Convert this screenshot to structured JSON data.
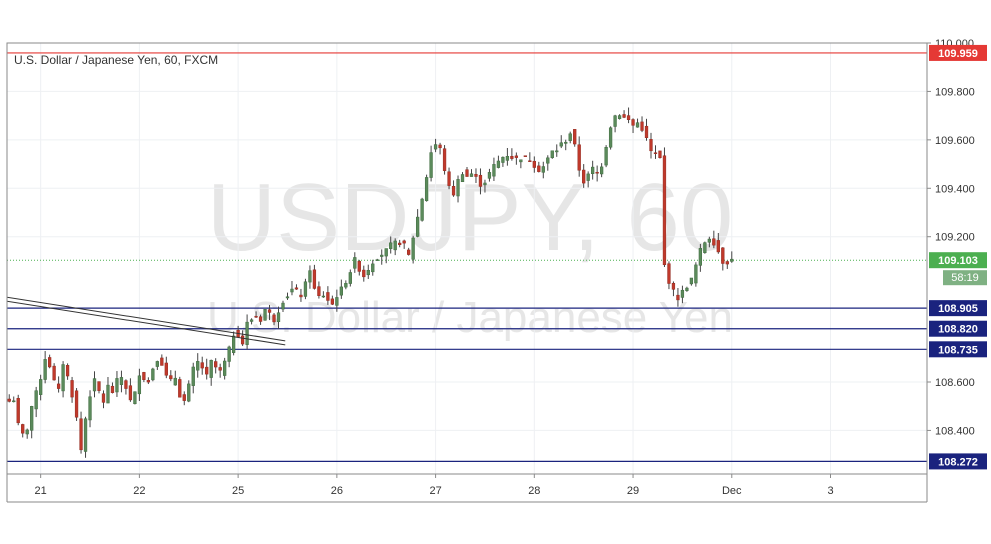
{
  "chart_data": {
    "type": "candlestick",
    "title": "U.S. Dollar / Japanese Yen, 60, FXCM",
    "watermark": {
      "symbol": "USDJPY, 60",
      "name": "U.S. Dollar / Japanese Yen"
    },
    "ylim": [
      108.22,
      110.0
    ],
    "y_ticks": [
      "110.000",
      "109.800",
      "109.600",
      "109.400",
      "109.200",
      "108.600",
      "108.400"
    ],
    "y_tick_values": [
      110.0,
      109.8,
      109.6,
      109.4,
      109.2,
      108.6,
      108.4
    ],
    "x_ticks": [
      "21",
      "22",
      "25",
      "26",
      "27",
      "28",
      "29",
      "Dec",
      "3"
    ],
    "x_tick_positions": [
      7,
      29,
      51,
      73,
      95,
      117,
      139,
      161,
      183
    ],
    "bars_total": 205,
    "horizontal_levels": [
      {
        "label": "109.959",
        "value": 109.959,
        "color": "#e53935"
      },
      {
        "label": "108.905",
        "value": 108.905,
        "color": "#1a237e"
      },
      {
        "label": "108.820",
        "value": 108.82,
        "color": "#1a237e"
      },
      {
        "label": "108.735",
        "value": 108.735,
        "color": "#1a237e"
      },
      {
        "label": "108.272",
        "value": 108.272,
        "color": "#1a237e"
      }
    ],
    "last_price": {
      "label": "109.103",
      "value": 109.103,
      "countdown": "58:19",
      "color": "#4caf50"
    },
    "trendline": {
      "start": [
        0,
        108.95
      ],
      "end": [
        61.5,
        108.77
      ]
    },
    "candle_colors": {
      "up": "#5b8a5b",
      "down": "#c0392b",
      "wick": "#444444"
    },
    "anchors": [
      [
        0,
        108.52
      ],
      [
        1,
        108.53
      ],
      [
        2,
        108.42
      ],
      [
        3,
        108.38
      ],
      [
        4,
        108.41
      ],
      [
        5,
        108.5
      ],
      [
        6,
        108.55
      ],
      [
        7,
        108.62
      ],
      [
        8,
        108.7
      ],
      [
        9,
        108.67
      ],
      [
        10,
        108.6
      ],
      [
        11,
        108.56
      ],
      [
        12,
        108.68
      ],
      [
        13,
        108.62
      ],
      [
        14,
        108.55
      ],
      [
        15,
        108.45
      ],
      [
        16,
        108.32
      ],
      [
        17,
        108.45
      ],
      [
        18,
        108.55
      ],
      [
        19,
        108.6
      ],
      [
        20,
        108.56
      ],
      [
        21,
        108.52
      ],
      [
        22,
        108.58
      ],
      [
        23,
        108.56
      ],
      [
        24,
        108.6
      ],
      [
        25,
        108.62
      ],
      [
        26,
        108.58
      ],
      [
        27,
        108.52
      ],
      [
        28,
        108.55
      ],
      [
        29,
        108.64
      ],
      [
        30,
        108.62
      ],
      [
        31,
        108.6
      ],
      [
        32,
        108.66
      ],
      [
        33,
        108.7
      ],
      [
        34,
        108.68
      ],
      [
        35,
        108.62
      ],
      [
        36,
        108.6
      ],
      [
        37,
        108.62
      ],
      [
        38,
        108.55
      ],
      [
        39,
        108.52
      ],
      [
        40,
        108.58
      ],
      [
        41,
        108.65
      ],
      [
        42,
        108.68
      ],
      [
        43,
        108.66
      ],
      [
        44,
        108.62
      ],
      [
        45,
        108.68
      ],
      [
        46,
        108.66
      ],
      [
        47,
        108.64
      ],
      [
        48,
        108.68
      ],
      [
        49,
        108.73
      ],
      [
        50,
        108.8
      ],
      [
        51,
        108.8
      ],
      [
        52,
        108.76
      ],
      [
        53,
        108.84
      ],
      [
        54,
        108.86
      ],
      [
        55,
        108.87
      ],
      [
        56,
        108.86
      ],
      [
        57,
        108.9
      ],
      [
        58,
        108.88
      ],
      [
        59,
        108.86
      ],
      [
        60,
        108.9
      ],
      [
        61,
        108.94
      ],
      [
        62,
        108.96
      ],
      [
        63,
        108.98
      ],
      [
        64,
        108.97
      ],
      [
        65,
        108.96
      ],
      [
        66,
        109.0
      ],
      [
        67,
        109.07
      ],
      [
        68,
        108.98
      ],
      [
        69,
        108.95
      ],
      [
        70,
        108.96
      ],
      [
        71,
        108.94
      ],
      [
        72,
        108.92
      ],
      [
        73,
        108.96
      ],
      [
        74,
        108.98
      ],
      [
        75,
        109.02
      ],
      [
        76,
        109.06
      ],
      [
        77,
        109.1
      ],
      [
        78,
        109.07
      ],
      [
        79,
        109.04
      ],
      [
        80,
        109.07
      ],
      [
        81,
        109.1
      ],
      [
        82,
        109.12
      ],
      [
        83,
        109.13
      ],
      [
        84,
        109.14
      ],
      [
        85,
        109.16
      ],
      [
        86,
        109.17
      ],
      [
        87,
        109.18
      ],
      [
        88,
        109.16
      ],
      [
        89,
        109.12
      ],
      [
        90,
        109.2
      ],
      [
        91,
        109.28
      ],
      [
        92,
        109.36
      ],
      [
        93,
        109.45
      ],
      [
        94,
        109.55
      ],
      [
        95,
        109.58
      ],
      [
        96,
        109.56
      ],
      [
        97,
        109.48
      ],
      [
        98,
        109.4
      ],
      [
        99,
        109.38
      ],
      [
        100,
        109.43
      ],
      [
        101,
        109.47
      ],
      [
        102,
        109.45
      ],
      [
        103,
        109.46
      ],
      [
        104,
        109.44
      ],
      [
        105,
        109.42
      ],
      [
        106,
        109.43
      ],
      [
        107,
        109.46
      ],
      [
        108,
        109.49
      ],
      [
        109,
        109.51
      ],
      [
        110,
        109.53
      ],
      [
        111,
        109.54
      ],
      [
        112,
        109.53
      ],
      [
        113,
        109.52
      ],
      [
        114,
        109.53
      ],
      [
        115,
        109.52
      ],
      [
        116,
        109.52
      ],
      [
        117,
        109.5
      ],
      [
        118,
        109.48
      ],
      [
        119,
        109.49
      ],
      [
        120,
        109.52
      ],
      [
        121,
        109.55
      ],
      [
        122,
        109.56
      ],
      [
        123,
        109.58
      ],
      [
        124,
        109.6
      ],
      [
        125,
        109.63
      ],
      [
        126,
        109.57
      ],
      [
        127,
        109.48
      ],
      [
        128,
        109.43
      ],
      [
        129,
        109.45
      ],
      [
        130,
        109.48
      ],
      [
        131,
        109.46
      ],
      [
        132,
        109.5
      ],
      [
        133,
        109.58
      ],
      [
        134,
        109.66
      ],
      [
        135,
        109.7
      ],
      [
        136,
        109.71
      ],
      [
        137,
        109.69
      ],
      [
        138,
        109.68
      ],
      [
        139,
        109.66
      ],
      [
        140,
        109.67
      ],
      [
        141,
        109.65
      ],
      [
        142,
        109.6
      ],
      [
        143,
        109.55
      ],
      [
        144,
        109.54
      ],
      [
        145,
        109.52
      ],
      [
        146,
        109.08
      ],
      [
        147,
        109.02
      ],
      [
        148,
        108.97
      ],
      [
        149,
        108.95
      ],
      [
        150,
        108.97
      ],
      [
        151,
        109.0
      ],
      [
        152,
        109.02
      ],
      [
        153,
        109.08
      ],
      [
        154,
        109.14
      ],
      [
        155,
        109.18
      ],
      [
        156,
        109.2
      ],
      [
        157,
        109.18
      ],
      [
        158,
        109.14
      ],
      [
        159,
        109.1
      ],
      [
        160,
        109.1
      ],
      [
        161,
        109.103
      ]
    ]
  }
}
